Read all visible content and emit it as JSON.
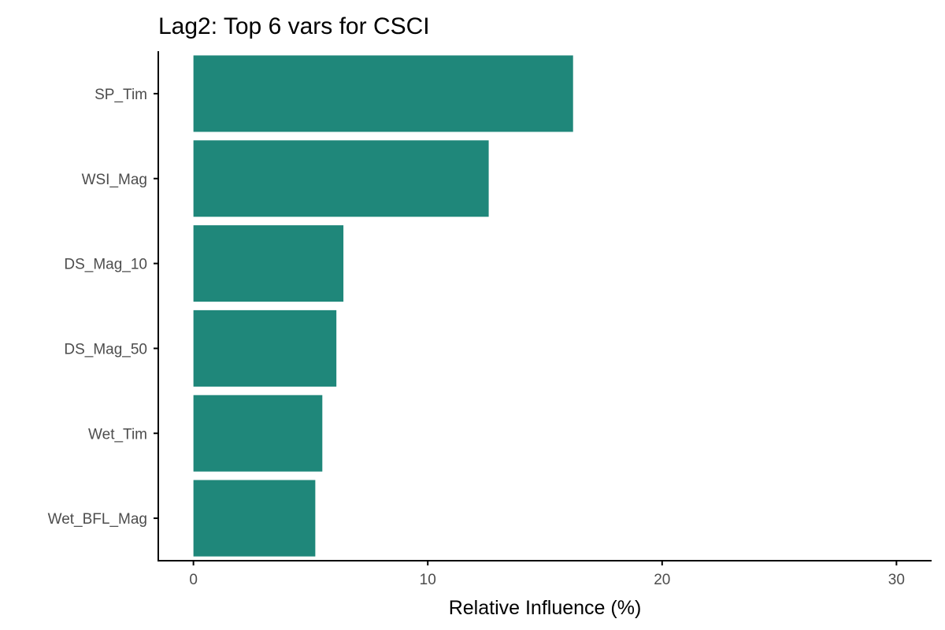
{
  "chart_data": {
    "type": "bar",
    "orientation": "horizontal",
    "title": "Lag2: Top 6 vars for CSCI",
    "xlabel": "Relative Influence (%)",
    "ylabel": "",
    "categories": [
      "SP_Tim",
      "WSI_Mag",
      "DS_Mag_10",
      "DS_Mag_50",
      "Wet_Tim",
      "Wet_BFL_Mag"
    ],
    "values": [
      16.2,
      12.6,
      6.4,
      6.1,
      5.5,
      5.2
    ],
    "xlim": [
      -1.5,
      31.5
    ],
    "xticks": [
      0,
      10,
      20,
      30
    ],
    "bar_color": "#1F877A",
    "grid": false,
    "legend": "none"
  }
}
